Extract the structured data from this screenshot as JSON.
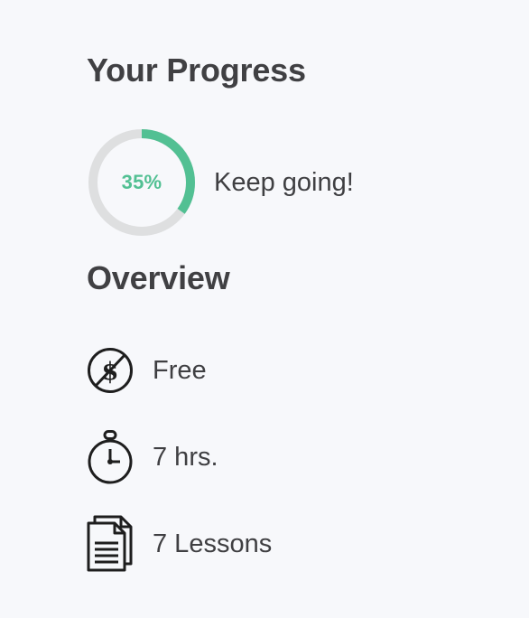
{
  "progress": {
    "title": "Your Progress",
    "percent_label": "35%",
    "percent_value": 35,
    "message": "Keep going!",
    "ring_color": "#52c093",
    "track_color": "#dedfe0"
  },
  "overview": {
    "title": "Overview",
    "items": [
      {
        "icon": "no-cost-icon",
        "label": "Free"
      },
      {
        "icon": "stopwatch-icon",
        "label": "7 hrs."
      },
      {
        "icon": "documents-icon",
        "label": "7 Lessons"
      }
    ]
  }
}
